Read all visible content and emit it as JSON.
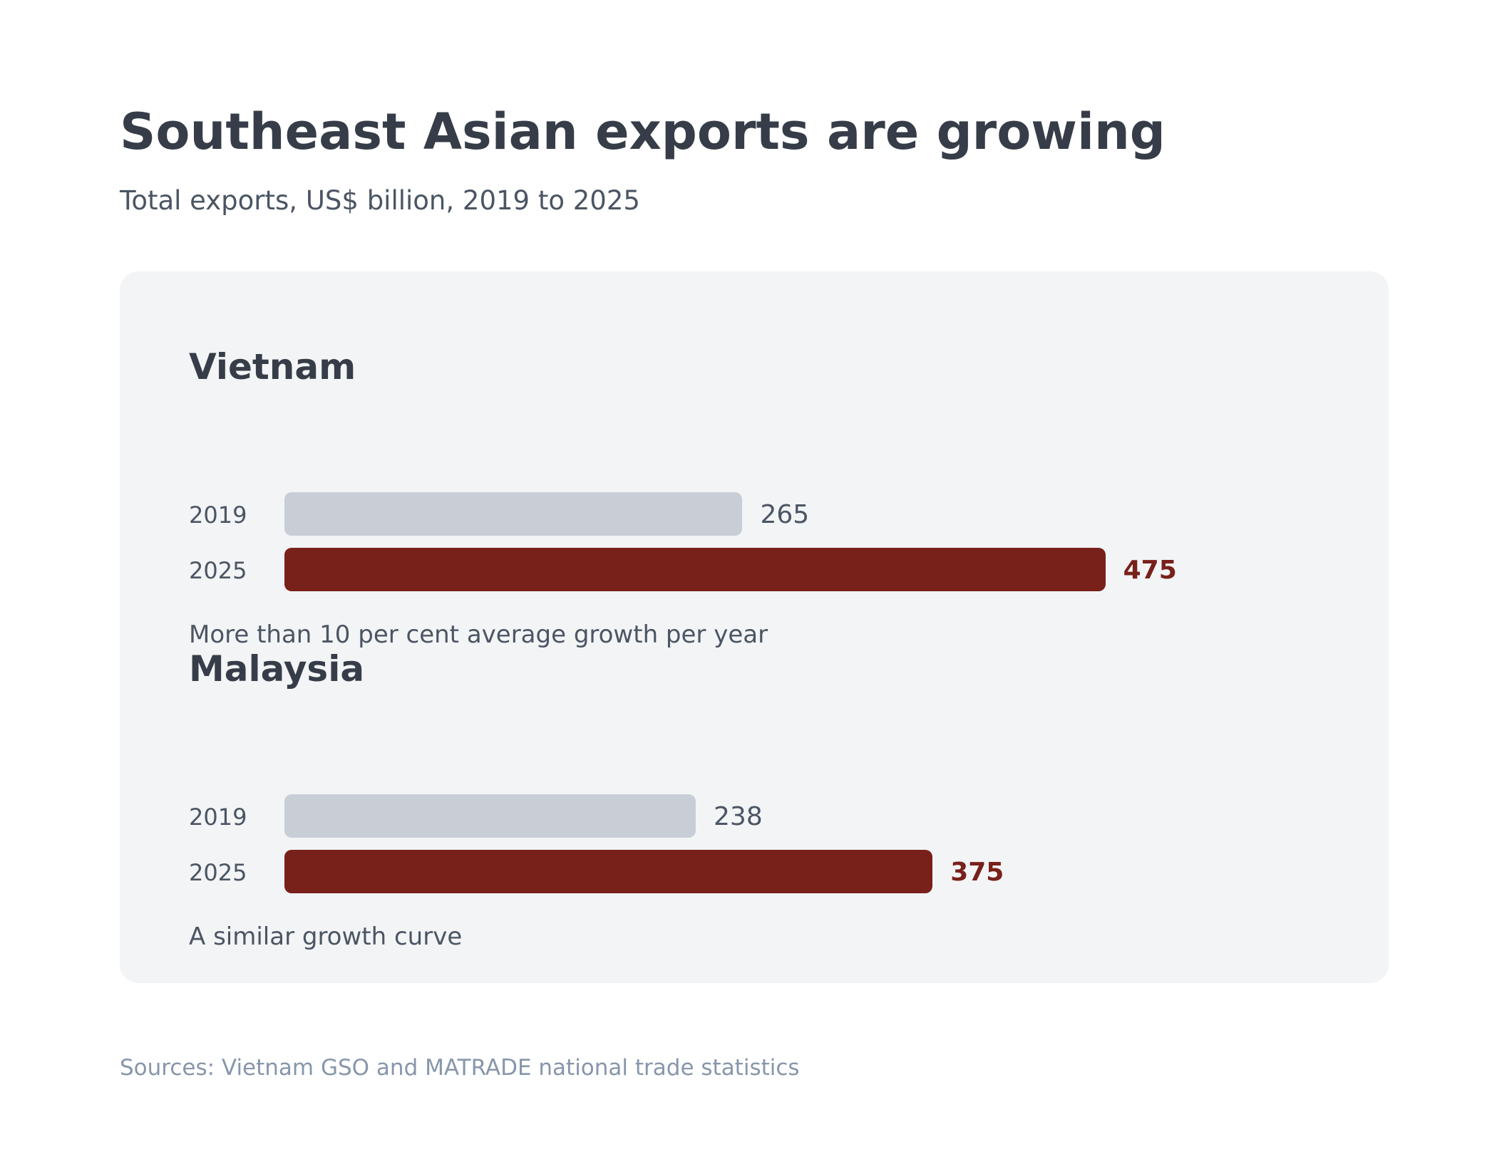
{
  "title": "Southeast Asian exports are growing",
  "subtitle": "Total exports, US$ billion, 2019 to 2025",
  "source": "Sources: Vietnam GSO and MATRADE national trade statistics",
  "colors": {
    "base_bar": "#c8cdd6",
    "current_bar": "#78201a",
    "panel": "#f3f4f6",
    "heading": "#363d48",
    "muted": "#4b5563",
    "source": "#8796ab"
  },
  "chart_data": {
    "type": "bar",
    "orientation": "horizontal",
    "title": "Southeast Asian exports are growing",
    "subtitle": "Total exports, US$ billion, 2019 to 2025",
    "groups": [
      {
        "name": "Vietnam",
        "note": "More than 10 per cent average growth per year",
        "bars": [
          {
            "year": "2019",
            "value": 265,
            "label": "265"
          },
          {
            "year": "2025",
            "value": 475,
            "label": "475"
          }
        ]
      },
      {
        "name": "Malaysia",
        "note": "A similar growth curve",
        "bars": [
          {
            "year": "2019",
            "value": 238,
            "label": "238"
          },
          {
            "year": "2025",
            "value": 375,
            "label": "375"
          }
        ]
      }
    ],
    "grid": false,
    "legend": "none"
  }
}
